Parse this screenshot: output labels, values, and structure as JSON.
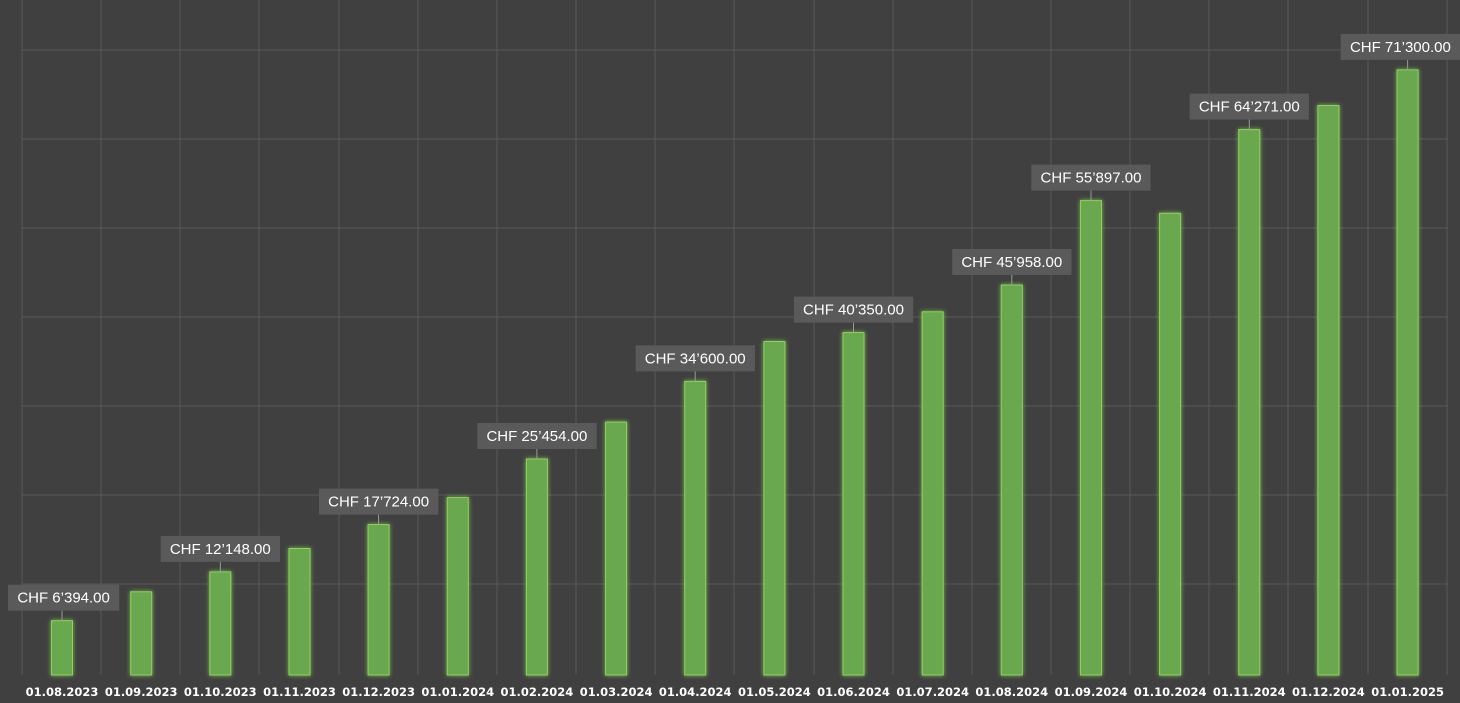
{
  "chart_data": {
    "type": "bar",
    "categories": [
      "01.08.2023",
      "01.09.2023",
      "01.10.2023",
      "01.11.2023",
      "01.12.2023",
      "01.01.2024",
      "01.02.2024",
      "01.03.2024",
      "01.04.2024",
      "01.05.2024",
      "01.06.2024",
      "01.07.2024",
      "01.08.2024",
      "01.09.2024",
      "01.10.2024",
      "01.11.2024",
      "01.12.2024",
      "01.01.2025"
    ],
    "values": [
      6394,
      9800,
      12148,
      14900,
      17724,
      20900,
      25454,
      29800,
      34600,
      39300,
      40350,
      42800,
      45958,
      55897,
      54400,
      64271,
      67100,
      71300
    ],
    "data_labels": [
      "CHF 6’394.00",
      null,
      "CHF 12’148.00",
      null,
      "CHF 17’724.00",
      null,
      "CHF 25’454.00",
      null,
      "CHF 34’600.00",
      null,
      "CHF 40’350.00",
      null,
      "CHF 45’958.00",
      "CHF 55’897.00",
      null,
      "CHF 64’271.00",
      null,
      "CHF 71’300.00"
    ],
    "ylim": [
      0,
      75000
    ],
    "grid": true,
    "colors": {
      "background": "#404040",
      "bar": "#6aa84f",
      "bar_glow": "#8fd15a",
      "grid": "#595959",
      "label_box": "#5a5a5a",
      "label_text": "#ffffff",
      "tick_text": "#ffffff"
    }
  }
}
